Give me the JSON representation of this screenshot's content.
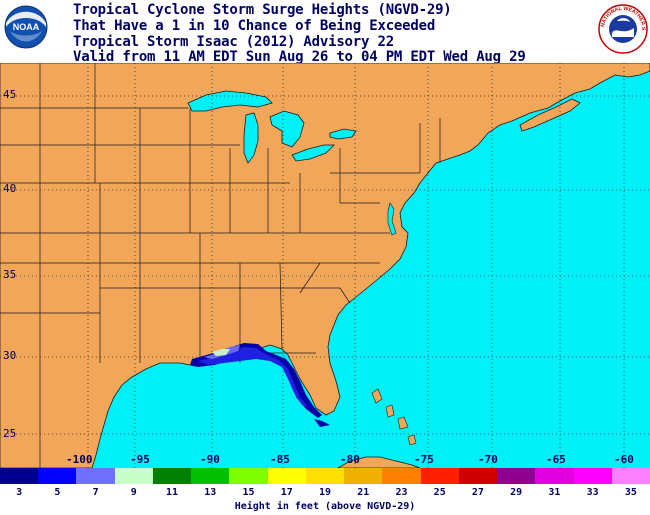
{
  "header": {
    "lines": [
      "Tropical Cyclone Storm Surge Heights (NGVD-29)",
      "That Have a 1 in 10 Chance of Being Exceeded",
      "Tropical Storm Isaac (2012) Advisory 22",
      "Valid from 11 AM EDT Sun Aug 26 to 04 PM EDT Wed Aug 29"
    ],
    "noaa_logo_text": "NOAA",
    "nws_logo_text": "NATIONAL WEATHER SERVICE"
  },
  "map": {
    "colors": {
      "land": "#F2A65A",
      "water": "#00F0F8",
      "border": "#1a1a1a",
      "grid": "#303030"
    },
    "lat_labels": [
      "45",
      "40",
      "35",
      "30",
      "25"
    ],
    "lon_labels": [
      "-100",
      "-95",
      "-90",
      "-85",
      "-80",
      "-75",
      "-70",
      "-65",
      "-60"
    ],
    "surge_colors": {
      "deep": "#0000A8",
      "mid": "#2020E0",
      "light": "#6A6AF0",
      "pale": "#C8F0C8"
    }
  },
  "legend": {
    "caption": "Height in feet (above NGVD-29)",
    "labels": [
      "3",
      "5",
      "7",
      "9",
      "11",
      "13",
      "15",
      "17",
      "19",
      "21",
      "23",
      "25",
      "27",
      "29",
      "31",
      "33",
      "35"
    ],
    "colors": [
      "#000090",
      "#0000FF",
      "#7070FF",
      "#C8FFC8",
      "#008000",
      "#00C000",
      "#80FF00",
      "#FFFF00",
      "#FFE000",
      "#F0B000",
      "#FF8000",
      "#FF2000",
      "#D00000",
      "#900090",
      "#E000E0",
      "#FF00FF",
      "#FF80FF"
    ]
  }
}
